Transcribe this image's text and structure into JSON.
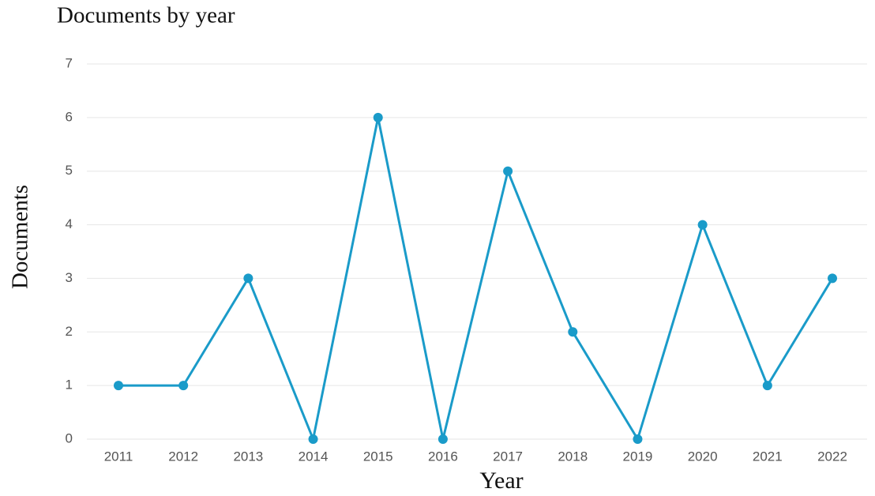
{
  "chart_data": {
    "type": "line",
    "title": "Documents by year",
    "x_label": "Year",
    "y_label": "Documents",
    "categories": [
      "2011",
      "2012",
      "2013",
      "2014",
      "2015",
      "2016",
      "2017",
      "2018",
      "2019",
      "2020",
      "2021",
      "2022"
    ],
    "values": [
      1,
      1,
      3,
      0,
      6,
      0,
      5,
      2,
      0,
      4,
      1,
      3
    ],
    "color": "#1a9bc9",
    "ylim": [
      0,
      7
    ],
    "yticks": [
      0,
      1,
      2,
      3,
      4,
      5,
      6,
      7
    ],
    "grid": true
  }
}
